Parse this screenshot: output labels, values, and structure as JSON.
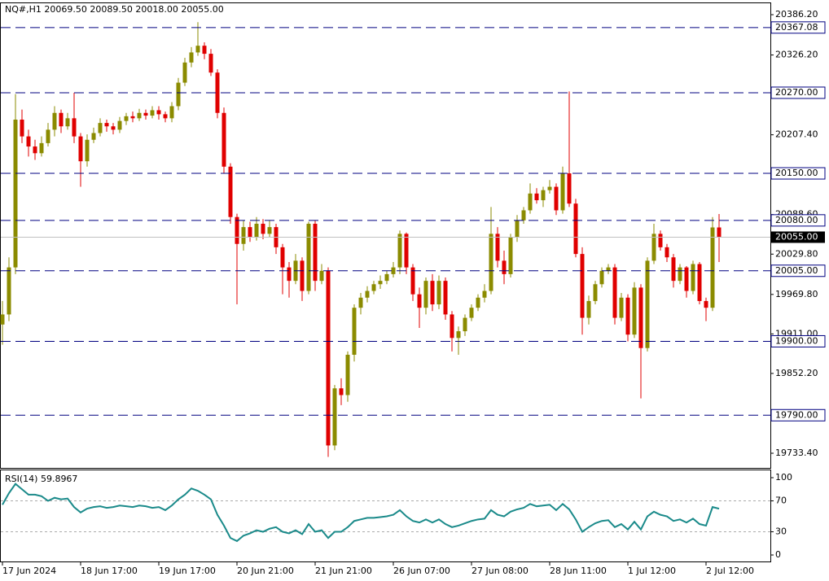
{
  "chart_data": [
    {
      "type": "candlestick",
      "title": "NQ#,H1  20069.50 20089.50 20018.00 20055.00",
      "up_color": "#8b8b00",
      "down_color": "#e00000",
      "ylim": [
        19711.6,
        20403.2
      ],
      "yticks": [
        {
          "value": 20386.2,
          "label": "20386.20"
        },
        {
          "value": 20326.2,
          "label": "20326.20"
        },
        {
          "value": 20207.4,
          "label": "20207.40"
        },
        {
          "value": 20088.6,
          "label": "20088.60"
        },
        {
          "value": 20029.8,
          "label": "20029.80"
        },
        {
          "value": 19969.8,
          "label": "19969.80"
        },
        {
          "value": 19911,
          "label": "19911.00"
        },
        {
          "value": 19852.2,
          "label": "19852.20"
        },
        {
          "value": 19733.4,
          "label": "19733.40"
        }
      ],
      "levels": [
        {
          "value": 20367.08,
          "label": "20367.08"
        },
        {
          "value": 20270,
          "label": "20270.00"
        },
        {
          "value": 20150,
          "label": "20150.00"
        },
        {
          "value": 20080,
          "label": "20080.00"
        },
        {
          "value": 20005,
          "label": "20005.00"
        },
        {
          "value": 19900,
          "label": "19900.00"
        },
        {
          "value": 19790,
          "label": "19790.00"
        }
      ],
      "levels_color": "#000080",
      "last_price": {
        "value": 20055,
        "label": "20055.00"
      },
      "categories": [
        "17 Jun 2024",
        null,
        null,
        null,
        null,
        null,
        null,
        null,
        null,
        null,
        null,
        null,
        "18 Jun 17:00",
        null,
        null,
        null,
        null,
        null,
        null,
        null,
        null,
        null,
        null,
        null,
        "19 Jun 17:00",
        null,
        null,
        null,
        null,
        null,
        null,
        null,
        null,
        null,
        null,
        null,
        "20 Jun 21:00",
        null,
        null,
        null,
        null,
        null,
        null,
        null,
        null,
        null,
        null,
        null,
        "21 Jun 21:00",
        null,
        null,
        null,
        null,
        null,
        null,
        null,
        null,
        null,
        null,
        null,
        "26 Jun 07:00",
        null,
        null,
        null,
        null,
        null,
        null,
        null,
        null,
        null,
        null,
        null,
        "27 Jun 08:00",
        null,
        null,
        null,
        null,
        null,
        null,
        null,
        null,
        null,
        null,
        null,
        "28 Jun 11:00",
        null,
        null,
        null,
        null,
        null,
        null,
        null,
        null,
        null,
        null,
        null,
        "1 Jul 12:00",
        null,
        null,
        null,
        null,
        null,
        null,
        null,
        null,
        null,
        null,
        null,
        "2 Jul 12:00",
        null,
        null
      ],
      "open": [
        19925,
        19940,
        20010,
        20230,
        20205,
        20190,
        20180,
        20195,
        20215,
        20240,
        20220,
        20232,
        20205,
        20168,
        20200,
        20210,
        20225,
        20220,
        20215,
        20228,
        20235,
        20232,
        20240,
        20236,
        20244,
        20238,
        20232,
        20250,
        20285,
        20315,
        20330,
        20340,
        20328,
        20300,
        20240,
        20160,
        20085,
        20045,
        20070,
        20055,
        20075,
        20060,
        20070,
        20040,
        20010,
        19990,
        20020,
        19975,
        20075,
        19990,
        20005,
        19745,
        19830,
        19820,
        19880,
        19950,
        19965,
        19975,
        19985,
        19990,
        20000,
        20010,
        20060,
        20010,
        19970,
        19950,
        19990,
        19955,
        19990,
        19940,
        19905,
        19915,
        19935,
        19950,
        19965,
        19975,
        20060,
        20020,
        20000,
        20055,
        20080,
        20095,
        20120,
        20110,
        20125,
        20130,
        20095,
        20150,
        20105,
        20030,
        19935,
        19960,
        19985,
        20005,
        20010,
        19935,
        19965,
        19910,
        19980,
        19890,
        20020,
        20060,
        20040,
        20025,
        19990,
        20010,
        19975,
        20015,
        19960,
        19950,
        20069.5
      ],
      "high": [
        19960,
        20025,
        20268,
        20245,
        20215,
        20200,
        20205,
        20225,
        20250,
        20245,
        20240,
        20270,
        20210,
        20208,
        20218,
        20232,
        20230,
        20225,
        20234,
        20240,
        20242,
        20246,
        20245,
        20250,
        20250,
        20242,
        20256,
        20292,
        20322,
        20338,
        20375,
        20345,
        20335,
        20305,
        20248,
        20165,
        20090,
        20080,
        20078,
        20085,
        20082,
        20080,
        20075,
        20045,
        20018,
        20030,
        20025,
        20078,
        20080,
        20015,
        20010,
        19835,
        19845,
        19885,
        19955,
        19972,
        19982,
        19990,
        19998,
        20005,
        20018,
        20065,
        20062,
        20015,
        19980,
        19995,
        20000,
        19998,
        19995,
        19945,
        19922,
        19940,
        19955,
        19970,
        19985,
        20100,
        20070,
        20035,
        20060,
        20088,
        20100,
        20135,
        20128,
        20130,
        20140,
        20135,
        20160,
        20272,
        20112,
        20040,
        19968,
        19990,
        20010,
        20015,
        20015,
        19972,
        19970,
        19988,
        19985,
        20025,
        20075,
        20065,
        20045,
        20030,
        20015,
        20012,
        20020,
        20018,
        19965,
        20085,
        20089.5
      ],
      "low": [
        19895,
        19930,
        20000,
        20195,
        20175,
        20170,
        20175,
        20190,
        20205,
        20210,
        20215,
        20195,
        20130,
        20160,
        20195,
        20205,
        20212,
        20208,
        20210,
        20222,
        20226,
        20228,
        20230,
        20232,
        20230,
        20226,
        20226,
        20244,
        20280,
        20308,
        20325,
        20320,
        20295,
        20232,
        20150,
        20075,
        19955,
        20035,
        20048,
        20050,
        20052,
        20055,
        20030,
        19970,
        19965,
        19985,
        19960,
        19970,
        19975,
        19985,
        19728,
        19738,
        19805,
        19810,
        19870,
        19940,
        19958,
        19970,
        19978,
        19985,
        19995,
        20000,
        20000,
        19960,
        19920,
        19940,
        19945,
        19948,
        19932,
        19885,
        19880,
        19908,
        19930,
        19945,
        19958,
        19970,
        20010,
        19985,
        19995,
        20048,
        20075,
        20090,
        20105,
        20100,
        20120,
        20088,
        20090,
        20100,
        20025,
        19910,
        19925,
        19955,
        19980,
        20000,
        19925,
        19930,
        19900,
        19905,
        19815,
        19885,
        20015,
        20035,
        20018,
        19980,
        19985,
        19965,
        19970,
        19955,
        19930,
        19945,
        20018
      ],
      "close": [
        19940,
        20010,
        20230,
        20205,
        20190,
        20180,
        20195,
        20215,
        20240,
        20220,
        20232,
        20205,
        20168,
        20200,
        20210,
        20225,
        20220,
        20215,
        20228,
        20235,
        20232,
        20240,
        20236,
        20244,
        20238,
        20232,
        20250,
        20285,
        20315,
        20330,
        20340,
        20328,
        20300,
        20240,
        20160,
        20085,
        20045,
        20070,
        20055,
        20075,
        20060,
        20070,
        20040,
        20010,
        19990,
        20020,
        19975,
        20075,
        19990,
        20005,
        19745,
        19830,
        19820,
        19880,
        19950,
        19965,
        19975,
        19985,
        19990,
        20000,
        20010,
        20060,
        20010,
        19970,
        19950,
        19990,
        19955,
        19990,
        19940,
        19905,
        19915,
        19935,
        19950,
        19965,
        19975,
        20060,
        20020,
        20000,
        20055,
        20080,
        20095,
        20120,
        20110,
        20125,
        20130,
        20095,
        20150,
        20105,
        20030,
        19935,
        19960,
        19985,
        20005,
        20010,
        19935,
        19965,
        19910,
        19980,
        19890,
        20020,
        20060,
        20040,
        20025,
        19990,
        20010,
        19975,
        20015,
        19960,
        19950,
        20069.5,
        20055
      ]
    },
    {
      "type": "line",
      "title": "RSI(14) 59.8967",
      "color": "#1a8a8a",
      "ylim": [
        -8.4,
        109.5
      ],
      "yticks": [
        0,
        30,
        70,
        100
      ],
      "levels": [
        30,
        70
      ],
      "values": [
        65,
        80,
        92,
        85,
        78,
        78,
        76,
        70,
        74,
        72,
        73,
        62,
        55,
        60,
        62,
        63,
        61,
        62,
        64,
        63,
        62,
        64,
        63,
        61,
        62,
        58,
        64,
        72,
        78,
        86,
        83,
        78,
        72,
        52,
        38,
        22,
        18,
        25,
        28,
        32,
        30,
        34,
        36,
        30,
        28,
        32,
        27,
        40,
        30,
        32,
        22,
        30,
        30,
        36,
        44,
        46,
        48,
        48,
        49,
        50,
        52,
        58,
        50,
        44,
        42,
        46,
        42,
        46,
        40,
        36,
        38,
        41,
        44,
        46,
        47,
        58,
        52,
        50,
        56,
        59,
        61,
        66,
        63,
        64,
        65,
        58,
        66,
        59,
        46,
        30,
        36,
        41,
        44,
        45,
        36,
        40,
        33,
        43,
        33,
        50,
        56,
        52,
        50,
        44,
        46,
        42,
        47,
        40,
        38,
        62,
        59.8967
      ]
    }
  ]
}
